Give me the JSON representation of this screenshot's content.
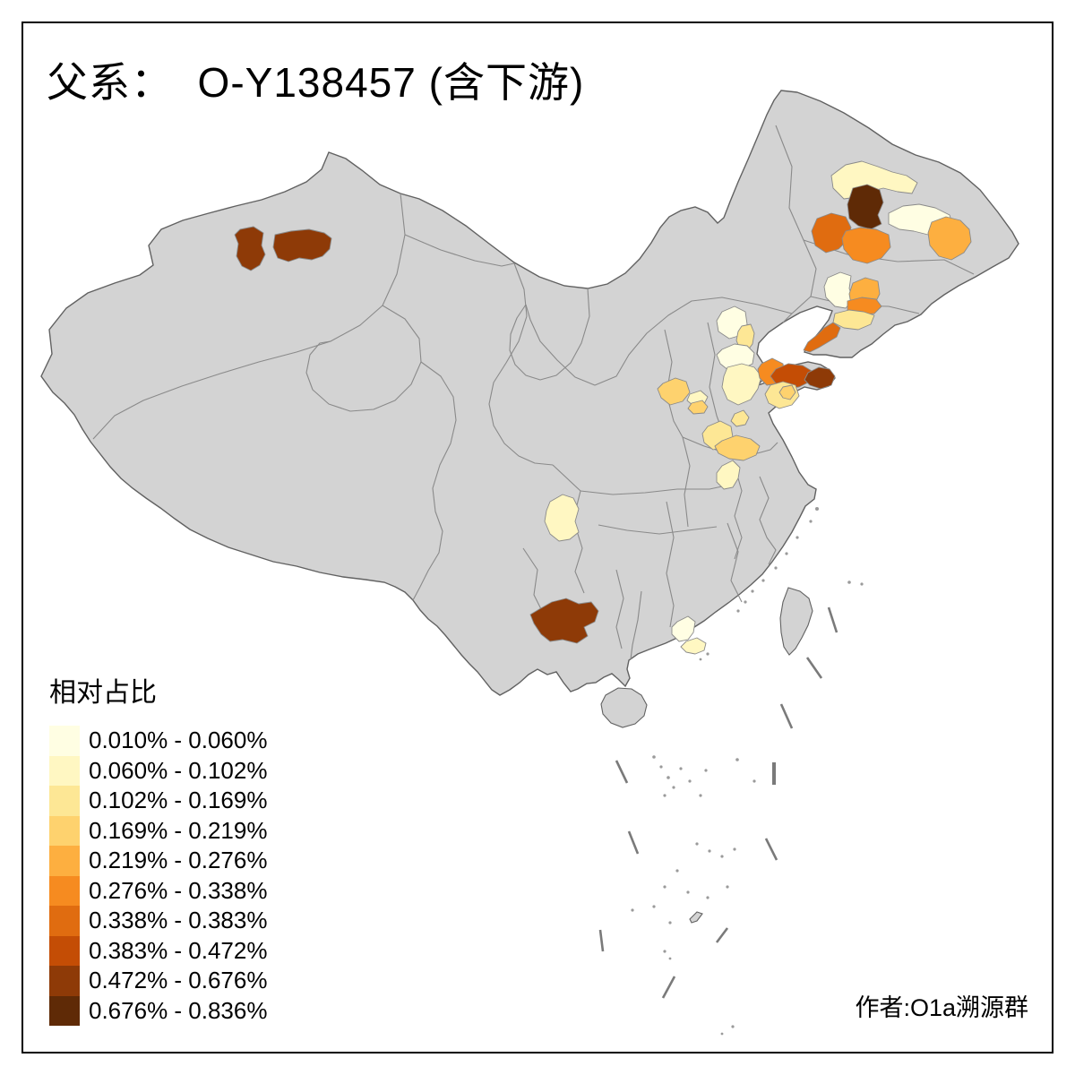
{
  "title": {
    "text": "父系：  O-Y138457 (含下游)"
  },
  "legend": {
    "title": "相对占比",
    "items": [
      {
        "label": "0.010% - 0.060%",
        "color": "#FFFEE3"
      },
      {
        "label": "0.060% - 0.102%",
        "color": "#FFF7C2"
      },
      {
        "label": "0.102% - 0.169%",
        "color": "#FDE795"
      },
      {
        "label": "0.169% - 0.219%",
        "color": "#FED26E"
      },
      {
        "label": "0.219% - 0.276%",
        "color": "#FDAF40"
      },
      {
        "label": "0.276% - 0.338%",
        "color": "#F68B20"
      },
      {
        "label": "0.338% - 0.383%",
        "color": "#E06C10"
      },
      {
        "label": "0.383% - 0.472%",
        "color": "#C44D05"
      },
      {
        "label": "0.472% - 0.676%",
        "color": "#8E3A07"
      },
      {
        "label": "0.676% - 0.836%",
        "color": "#5F2A06"
      }
    ]
  },
  "author": "作者:O1a溯源群",
  "map": {
    "land_color": "#D3D3D3",
    "border_color": "#616161",
    "province_border_color": "#8A8A8A",
    "sea_color": "#FFFFFF",
    "regions": [
      {
        "id": "xinjiang-west",
        "class": 9
      },
      {
        "id": "xinjiang-east",
        "class": 9
      },
      {
        "id": "heilongjiang-center-dark",
        "class": 10
      },
      {
        "id": "heilongjiang-west-orange",
        "class": 7
      },
      {
        "id": "heilongjiang-south-orange",
        "class": 6
      },
      {
        "id": "heilongjiang-east-orange",
        "class": 5
      },
      {
        "id": "heilongjiang-north-pale",
        "class": 2
      },
      {
        "id": "heilongjiang-ne-cream",
        "class": 1
      },
      {
        "id": "liaoning-north-cream",
        "class": 1
      },
      {
        "id": "fushun-orange",
        "class": 5
      },
      {
        "id": "benxi-orange",
        "class": 6
      },
      {
        "id": "liaoning-central-pale",
        "class": 3
      },
      {
        "id": "dalian",
        "class": 7
      },
      {
        "id": "beijing",
        "class": 1
      },
      {
        "id": "tianjin",
        "class": 3
      },
      {
        "id": "hebei-central-cream",
        "class": 1
      },
      {
        "id": "hebei-south-pale",
        "class": 2
      },
      {
        "id": "inner-mongolia-amber",
        "class": 4
      },
      {
        "id": "shanxi-north-pale",
        "class": 2
      },
      {
        "id": "shanxi-north-amber",
        "class": 4
      },
      {
        "id": "dongying",
        "class": 6
      },
      {
        "id": "yantai",
        "class": 8
      },
      {
        "id": "weihai",
        "class": 9
      },
      {
        "id": "qingdao-pale",
        "class": 3
      },
      {
        "id": "qingdao-amber",
        "class": 4
      },
      {
        "id": "dezhou",
        "class": 3
      },
      {
        "id": "hebei-xingtai",
        "class": 3
      },
      {
        "id": "jinan-liaocheng",
        "class": 4
      },
      {
        "id": "heze",
        "class": 2
      },
      {
        "id": "sichuan-east",
        "class": 2
      },
      {
        "id": "guizhou-north",
        "class": 9
      },
      {
        "id": "guangzhou-cream",
        "class": 1
      },
      {
        "id": "foshan-pale",
        "class": 2
      }
    ]
  }
}
